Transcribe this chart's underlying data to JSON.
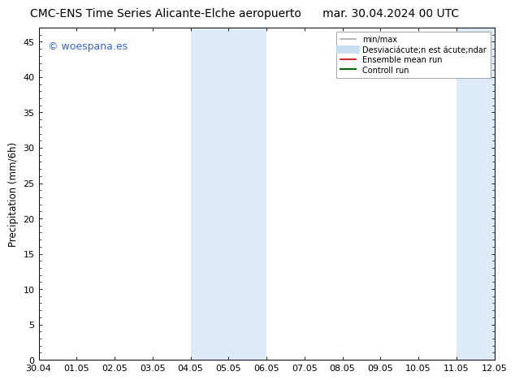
{
  "title_left": "CMC-ENS Time Series Alicante-Elche aeropuerto",
  "title_right": "mar. 30.04.2024 00 UTC",
  "ylabel": "Precipitation (mm/6h)",
  "watermark": "© woespana.es",
  "ylim": [
    0,
    47
  ],
  "yticks": [
    0,
    5,
    10,
    15,
    20,
    25,
    30,
    35,
    40,
    45
  ],
  "xtick_labels": [
    "30.04",
    "01.05",
    "02.05",
    "03.05",
    "04.05",
    "05.05",
    "06.05",
    "07.05",
    "08.05",
    "09.05",
    "10.05",
    "11.05",
    "12.05"
  ],
  "background_color": "#ffffff",
  "plot_bg_color": "#ffffff",
  "shaded_regions": [
    {
      "xstart": 4,
      "xend": 6,
      "color": "#ddeaf7"
    },
    {
      "xstart": 11,
      "xend": 12,
      "color": "#ddeaf7"
    }
  ],
  "legend_entries": [
    {
      "label": "min/max",
      "color": "#aaaaaa",
      "lw": 1.2
    },
    {
      "label": "Desviaciácute;n est ácute;ndar",
      "color": "#c8dff0",
      "lw": 7
    },
    {
      "label": "Ensemble mean run",
      "color": "#cc0000",
      "lw": 1.2
    },
    {
      "label": "Controll run",
      "color": "#006600",
      "lw": 1.5
    }
  ],
  "watermark_color": "#3366cc",
  "title_fontsize": 10,
  "tick_fontsize": 8,
  "ylabel_fontsize": 8.5,
  "legend_fontsize": 7,
  "watermark_fontsize": 9
}
